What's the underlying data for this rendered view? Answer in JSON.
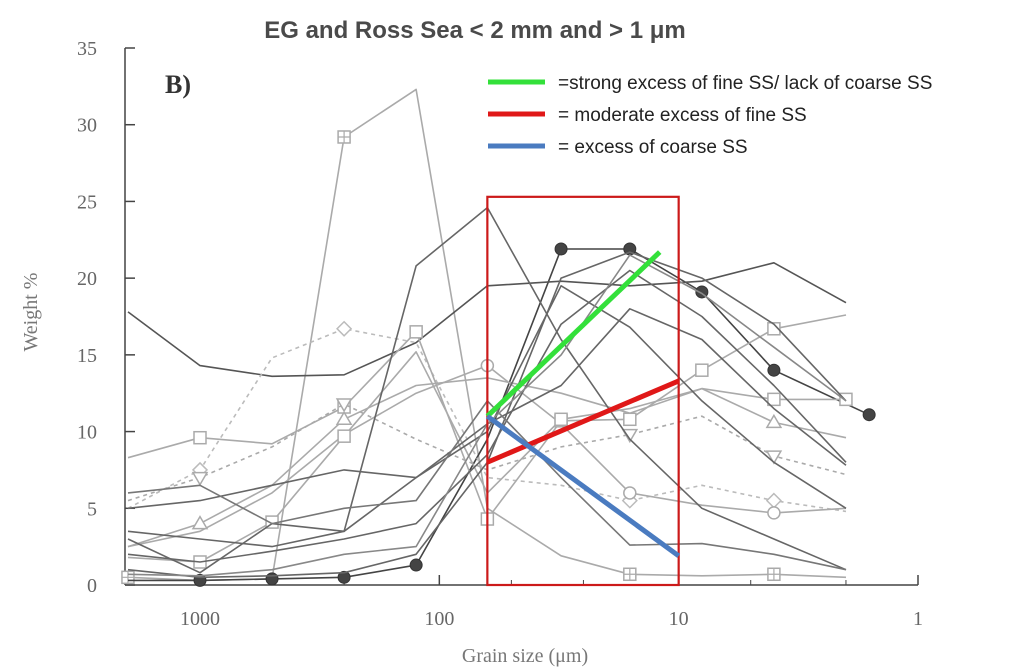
{
  "chart_data": {
    "type": "line",
    "title": "EG and Ross Sea < 2 mm and > 1 μm",
    "panel_label": "B)",
    "xlabel": "Grain size (μm)",
    "ylabel": "Weight %",
    "x_scale": "log-reversed",
    "xlim": [
      2000,
      1
    ],
    "ylim": [
      0,
      35
    ],
    "x_ticks": [
      {
        "value": 1000,
        "label": "1000"
      },
      {
        "value": 100,
        "label": "100"
      },
      {
        "value": 10,
        "label": "10"
      },
      {
        "value": 1,
        "label": "1"
      }
    ],
    "y_ticks": [
      {
        "value": 0,
        "label": "0"
      },
      {
        "value": 5,
        "label": "5"
      },
      {
        "value": 10,
        "label": "10"
      },
      {
        "value": 15,
        "label": "15"
      },
      {
        "value": 20,
        "label": "20"
      },
      {
        "value": 25,
        "label": "25"
      },
      {
        "value": 30,
        "label": "30"
      },
      {
        "value": 35,
        "label": "35"
      }
    ],
    "series": [
      {
        "color": "#aaaaaa",
        "marker": "square-plus",
        "dash": false,
        "x": [
          2000,
          1000,
          500,
          250,
          125,
          63,
          31,
          16,
          8,
          4,
          2
        ],
        "y": [
          0.5,
          0.3,
          0.4,
          29.2,
          32.3,
          5.0,
          1.9,
          0.7,
          0.6,
          0.7,
          0.5
        ],
        "marked": [
          0,
          3,
          7,
          9
        ]
      },
      {
        "color": "#444444",
        "marker": "filled-circle",
        "dash": false,
        "x": [
          2000,
          1000,
          500,
          250,
          125,
          63,
          31,
          16,
          8,
          4,
          1.6
        ],
        "y": [
          0.3,
          0.3,
          0.4,
          0.5,
          1.3,
          9.5,
          21.9,
          21.9,
          19.1,
          14.0,
          11.1
        ],
        "marked": [
          1,
          2,
          3,
          4,
          6,
          7,
          8,
          9,
          10
        ]
      },
      {
        "color": "#555555",
        "marker": "none",
        "dash": false,
        "x": [
          2000,
          1000,
          500,
          250,
          125,
          63,
          31,
          16,
          8,
          4,
          2
        ],
        "y": [
          17.8,
          14.3,
          13.6,
          13.7,
          15.8,
          19.5,
          19.8,
          19.5,
          19.8,
          21.0,
          18.4
        ],
        "marked": []
      },
      {
        "color": "#bbbbbb",
        "marker": "diamond",
        "dash": true,
        "x": [
          2000,
          1000,
          500,
          250,
          125,
          63,
          31,
          16,
          8,
          4,
          2
        ],
        "y": [
          5.0,
          7.5,
          14.8,
          16.7,
          15.8,
          7.0,
          6.5,
          5.5,
          6.5,
          5.5,
          4.8
        ],
        "marked": [
          1,
          3,
          7,
          9
        ]
      },
      {
        "color": "#aaaaaa",
        "marker": "square",
        "dash": false,
        "x": [
          2000,
          1000,
          500,
          250,
          125,
          63,
          31,
          16,
          8,
          4,
          2
        ],
        "y": [
          8.3,
          9.6,
          9.2,
          11.6,
          16.5,
          4.3,
          10.7,
          10.8,
          14.0,
          16.7,
          17.6
        ],
        "marked": [
          1,
          3,
          4,
          5,
          6,
          7,
          8,
          9
        ]
      },
      {
        "color": "#aaaaaa",
        "marker": "circle",
        "dash": false,
        "x": [
          2000,
          1000,
          500,
          250,
          125,
          63,
          31,
          16,
          8,
          4,
          2
        ],
        "y": [
          2.5,
          3.5,
          6.0,
          9.8,
          12.5,
          14.3,
          10.5,
          6.0,
          5.2,
          4.7,
          5.0
        ],
        "marked": [
          5,
          7,
          9
        ]
      },
      {
        "color": "#aaaaaa",
        "marker": "triangle-up",
        "dash": false,
        "x": [
          2000,
          1000,
          500,
          250,
          125,
          63,
          31,
          16,
          8,
          4,
          2
        ],
        "y": [
          2.5,
          4.0,
          6.5,
          10.8,
          13.0,
          13.5,
          12.5,
          11.2,
          12.8,
          10.6,
          9.6
        ],
        "marked": [
          1,
          3,
          9
        ]
      },
      {
        "color": "#aaaaaa",
        "marker": "triangle-down",
        "dash": true,
        "x": [
          2000,
          1000,
          500,
          250,
          125,
          63,
          31,
          16,
          8,
          4,
          2
        ],
        "y": [
          5.5,
          7.0,
          9.0,
          11.8,
          9.5,
          7.5,
          9.0,
          9.8,
          11.0,
          8.4,
          7.2
        ],
        "marked": [
          1,
          3,
          7,
          9
        ]
      },
      {
        "color": "#aaaaaa",
        "marker": "square",
        "dash": false,
        "x": [
          2000,
          1000,
          500,
          250,
          125,
          63,
          31,
          16,
          8,
          4,
          2
        ],
        "y": [
          1.8,
          1.5,
          4.1,
          9.7,
          15.2,
          6.0,
          10.8,
          11.5,
          12.8,
          12.1,
          12.1
        ],
        "marked": [
          1,
          2,
          3,
          6,
          9,
          10
        ]
      },
      {
        "color": "#666666",
        "marker": "none",
        "dash": false,
        "x": [
          2000,
          1000,
          500,
          250,
          125,
          63,
          31,
          16,
          8,
          4,
          2
        ],
        "y": [
          3.0,
          0.8,
          4.0,
          3.5,
          20.8,
          24.6,
          16.0,
          9.5,
          5.0,
          3.0,
          1.0
        ],
        "marked": []
      },
      {
        "color": "#666666",
        "marker": "none",
        "dash": false,
        "x": [
          2000,
          1000,
          500,
          250,
          125,
          63,
          31,
          16,
          8,
          4,
          2
        ],
        "y": [
          1.0,
          0.5,
          0.6,
          0.8,
          2.0,
          8.0,
          20.0,
          21.7,
          20.0,
          17.0,
          12.0
        ],
        "marked": []
      },
      {
        "color": "#666666",
        "marker": "none",
        "dash": false,
        "x": [
          2000,
          1000,
          500,
          250,
          125,
          63,
          31,
          16,
          8,
          4,
          2
        ],
        "y": [
          2.0,
          1.5,
          2.2,
          3.0,
          4.0,
          8.5,
          17.0,
          20.5,
          17.5,
          13.0,
          8.0
        ],
        "marked": []
      },
      {
        "color": "#666666",
        "marker": "none",
        "dash": false,
        "x": [
          2000,
          1000,
          500,
          250,
          125,
          63,
          31,
          16,
          8,
          4,
          2
        ],
        "y": [
          3.5,
          3.0,
          2.5,
          3.5,
          7.0,
          10.0,
          19.5,
          16.8,
          12.0,
          8.0,
          5.0
        ],
        "marked": []
      },
      {
        "color": "#666666",
        "marker": "none",
        "dash": false,
        "x": [
          2000,
          1000,
          500,
          250,
          125,
          63,
          31,
          16,
          8,
          4,
          2
        ],
        "y": [
          5.0,
          5.5,
          6.5,
          7.5,
          7.0,
          10.5,
          13.0,
          18.0,
          16.0,
          11.5,
          7.8
        ],
        "marked": []
      },
      {
        "color": "#777777",
        "marker": "none",
        "dash": false,
        "x": [
          2000,
          1000,
          500,
          250,
          125,
          63,
          31,
          16,
          8,
          4,
          2
        ],
        "y": [
          6.0,
          6.5,
          4.0,
          5.0,
          5.5,
          12.0,
          7.0,
          2.6,
          2.7,
          2.0,
          1.0
        ],
        "marked": []
      },
      {
        "color": "#888888",
        "marker": "none",
        "dash": false,
        "x": [
          2000,
          1000,
          500,
          250,
          125,
          63,
          31,
          16,
          8,
          4,
          2
        ],
        "y": [
          0.7,
          0.6,
          1.0,
          2.0,
          2.5,
          10.5,
          15.0,
          21.5,
          19.0,
          15.5,
          12.0
        ],
        "marked": []
      }
    ],
    "legend": [
      {
        "label": "=strong excess of fine SS/ lack of coarse SS",
        "color": "#33e03a"
      },
      {
        "label": "= moderate excess of fine SS",
        "color": "#e01818"
      },
      {
        "label": "= excess of coarse SS",
        "color": "#4a7bc0"
      }
    ],
    "annotations": {
      "box": {
        "x_from": 63,
        "x_to": 10,
        "y_from": 0,
        "y_to": 25.3,
        "color": "#cc1a1a"
      },
      "trend_lines": [
        {
          "color": "#33e03a",
          "x": [
            63,
            12
          ],
          "y": [
            11.0,
            21.7
          ]
        },
        {
          "color": "#e01818",
          "x": [
            63,
            10
          ],
          "y": [
            8.0,
            13.3
          ]
        },
        {
          "color": "#4a7bc0",
          "x": [
            63,
            10
          ],
          "y": [
            11.0,
            1.9
          ]
        }
      ]
    },
    "grid": false,
    "legend_position": "top-right"
  }
}
